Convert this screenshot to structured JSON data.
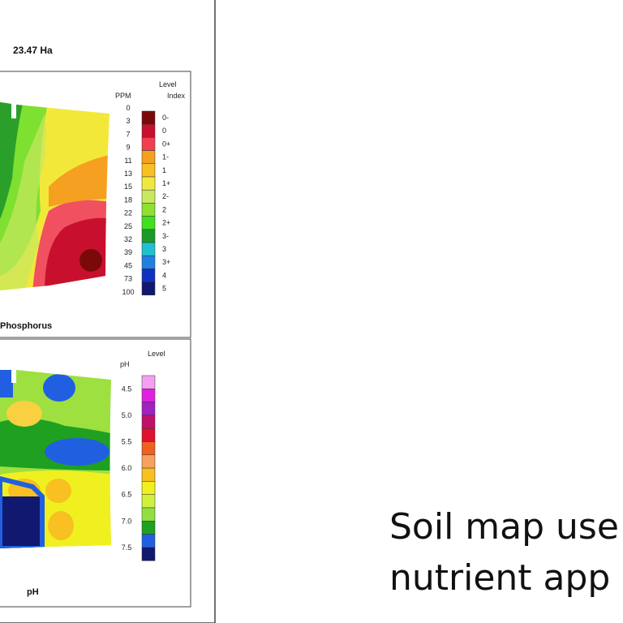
{
  "area": "23.47 Ha",
  "phosphorus": {
    "title": "Phosphorus",
    "level_label": "Level",
    "ppm_label": "PPM",
    "index_label": "Index",
    "ppm": [
      0,
      3,
      7,
      9,
      11,
      13,
      15,
      18,
      22,
      25,
      32,
      39,
      45,
      73,
      100
    ],
    "index": [
      "0-",
      "0",
      "0+",
      "1-",
      "1",
      "1+",
      "2-",
      "2",
      "2+",
      "3-",
      "3",
      "3+",
      "4",
      "5"
    ]
  },
  "ph": {
    "title": "pH",
    "level_label": "Level",
    "ph_label": "pH",
    "levels": [
      "4.5",
      "5.0",
      "5.5",
      "6.0",
      "6.5",
      "7.0",
      "7.5"
    ]
  },
  "caption": [
    "Soil map use",
    "nutrient app"
  ]
}
